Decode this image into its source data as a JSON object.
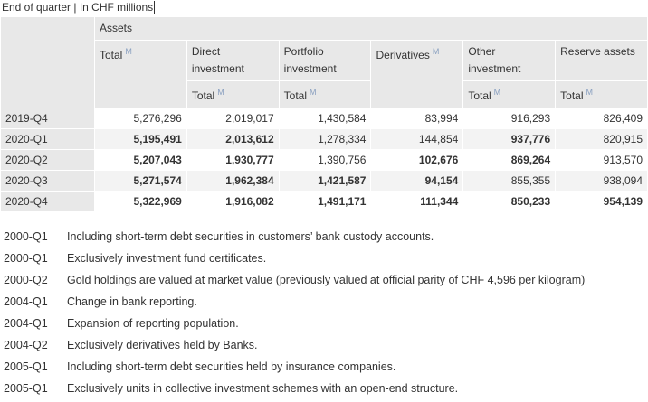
{
  "caption": "End of quarter | In CHF millions",
  "header": {
    "group": "Assets",
    "columns": [
      {
        "label": "Total",
        "marker": "M"
      },
      {
        "label": "Direct investment",
        "sub": "Total",
        "sub_marker": "M"
      },
      {
        "label": "Portfolio investment",
        "sub": "Total",
        "sub_marker": "M"
      },
      {
        "label": "Derivatives",
        "marker": "M"
      },
      {
        "label": "Other investment",
        "sub": "Total",
        "sub_marker": "M"
      },
      {
        "label": "Reserve assets",
        "sub": "Total",
        "sub_marker": "M"
      }
    ]
  },
  "table": {
    "rows": [
      {
        "label": "2019-Q4",
        "cells": [
          "5,276,296",
          "2,019,017",
          "1,430,584",
          "83,994",
          "916,293",
          "826,409"
        ],
        "bold": [
          false,
          false,
          false,
          false,
          false,
          false
        ]
      },
      {
        "label": "2020-Q1",
        "cells": [
          "5,195,491",
          "2,013,612",
          "1,278,334",
          "144,854",
          "937,776",
          "820,915"
        ],
        "bold": [
          true,
          true,
          false,
          false,
          true,
          false
        ]
      },
      {
        "label": "2020-Q2",
        "cells": [
          "5,207,043",
          "1,930,777",
          "1,390,756",
          "102,676",
          "869,264",
          "913,570"
        ],
        "bold": [
          true,
          true,
          false,
          true,
          true,
          false
        ]
      },
      {
        "label": "2020-Q3",
        "cells": [
          "5,271,574",
          "1,962,384",
          "1,421,587",
          "94,154",
          "855,355",
          "938,094"
        ],
        "bold": [
          true,
          true,
          true,
          true,
          false,
          false
        ]
      },
      {
        "label": "2020-Q4",
        "cells": [
          "5,322,969",
          "1,916,082",
          "1,491,171",
          "111,344",
          "850,233",
          "954,139"
        ],
        "bold": [
          true,
          true,
          true,
          true,
          true,
          true
        ]
      }
    ]
  },
  "footnotes": [
    {
      "period": "2000-Q1",
      "text": "Including short-term debt securities in customers’ bank custody accounts."
    },
    {
      "period": "2000-Q1",
      "text": "Exclusively investment fund certificates."
    },
    {
      "period": "2000-Q2",
      "text": "Gold holdings are valued at market value (previously valued at official parity of CHF 4,596 per kilogram)"
    },
    {
      "period": "2004-Q1",
      "text": "Change in bank reporting."
    },
    {
      "period": "2004-Q1",
      "text": "Expansion of reporting population."
    },
    {
      "period": "2004-Q2",
      "text": "Exclusively derivatives held by Banks."
    },
    {
      "period": "2005-Q1",
      "text": "Including short-term debt securities held by insurance companies."
    },
    {
      "period": "2005-Q1",
      "text": "Exclusively units in collective investment schemes with an open-end structure."
    }
  ]
}
